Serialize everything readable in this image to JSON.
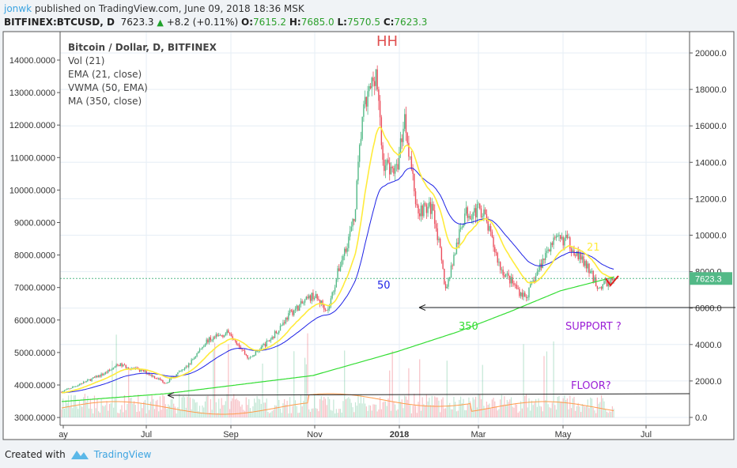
{
  "header": {
    "user": "jonwk",
    "published": "published on TradingView.com, June 09, 2018 18:36 MSK",
    "symbol": "BITFINEX:BTCUSD, D",
    "last": "7623.3",
    "change": "+8.2 (+0.11%)",
    "o_label": "O:",
    "o": "7615.2",
    "h_label": "H:",
    "h": "7685.0",
    "l_label": "L:",
    "l": "7570.5",
    "c_label": "C:",
    "c": "7623.3"
  },
  "footer": {
    "created_with": "Created with",
    "brand": "TradingView"
  },
  "chart_data": {
    "type": "candlestick",
    "title": "Bitcoin / Dollar, D, BITFINEX",
    "legend": [
      "Vol (21)",
      "EMA (21, close)",
      "VWMA (50, EMA)",
      "MA (350, close)"
    ],
    "left_axis_ticks": [
      "14000.0000",
      "13000.0000",
      "12000.0000",
      "11000.0000",
      "10000.0000",
      "9000.0000",
      "8000.0000",
      "7000.0000",
      "6000.0000",
      "5000.0000",
      "4000.0000",
      "3000.0000"
    ],
    "right_axis_ticks": [
      "20000.0",
      "18000.0",
      "16000.0",
      "14000.0",
      "12000.0",
      "10000.0",
      "8000.0",
      "6000.0",
      "4000.0",
      "2000.0",
      "0.0"
    ],
    "right_axis_range": [
      0,
      20000
    ],
    "x_ticks": [
      "ay",
      "Jul",
      "Sep",
      "Nov",
      "2018",
      "Mar",
      "May",
      "Jul"
    ],
    "last_price_label": "7623.3",
    "close_path": [
      [
        "2017-05-01",
        1400
      ],
      [
        "2017-06-01",
        2400
      ],
      [
        "2017-06-12",
        2900
      ],
      [
        "2017-07-01",
        2500
      ],
      [
        "2017-07-16",
        1900
      ],
      [
        "2017-08-01",
        2800
      ],
      [
        "2017-08-15",
        4200
      ],
      [
        "2017-09-01",
        4700
      ],
      [
        "2017-09-15",
        3200
      ],
      [
        "2017-10-01",
        4300
      ],
      [
        "2017-10-15",
        5700
      ],
      [
        "2017-11-01",
        6700
      ],
      [
        "2017-11-12",
        5900
      ],
      [
        "2017-11-20",
        8200
      ],
      [
        "2017-12-01",
        10800
      ],
      [
        "2017-12-07",
        16500
      ],
      [
        "2017-12-17",
        19100
      ],
      [
        "2017-12-22",
        14000
      ],
      [
        "2018-01-01",
        13500
      ],
      [
        "2018-01-07",
        16500
      ],
      [
        "2018-01-16",
        11400
      ],
      [
        "2018-01-28",
        11500
      ],
      [
        "2018-02-06",
        7000
      ],
      [
        "2018-02-20",
        11200
      ],
      [
        "2018-03-05",
        11400
      ],
      [
        "2018-03-18",
        8200
      ],
      [
        "2018-04-01",
        6900
      ],
      [
        "2018-04-06",
        6600
      ],
      [
        "2018-04-24",
        9600
      ],
      [
        "2018-05-05",
        9800
      ],
      [
        "2018-05-20",
        8300
      ],
      [
        "2018-05-29",
        7100
      ],
      [
        "2018-06-09",
        7623
      ]
    ],
    "ma350_path": [
      [
        "2017-05-01",
        870
      ],
      [
        "2017-07-16",
        1300
      ],
      [
        "2017-11-01",
        2300
      ],
      [
        "2018-01-01",
        3600
      ],
      [
        "2018-02-15",
        4700
      ],
      [
        "2018-03-25",
        5800
      ],
      [
        "2018-05-01",
        6950
      ],
      [
        "2018-06-09",
        7700
      ]
    ],
    "annotations": {
      "hh": "HH",
      "vwma": "50",
      "ema": "21",
      "ma": "350",
      "support": "SUPPORT ?",
      "floor": "FLOOR?"
    },
    "colors": {
      "up": "#53b987",
      "down": "#eb4d5c",
      "ema": "#ffeb3b",
      "vwma": "#1e22e6",
      "ma": "#33dd33",
      "vol_ma": "#ff9b4a",
      "text_ann": "#9b1fd6",
      "hh": "#e05050"
    }
  }
}
